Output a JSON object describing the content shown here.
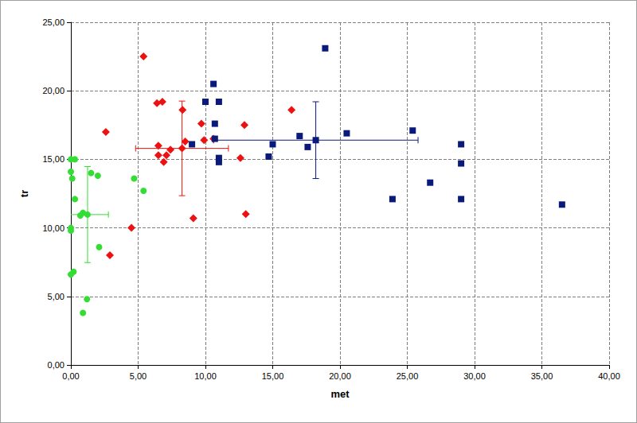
{
  "chart_data": {
    "type": "scatter",
    "x_label": "met",
    "y_label": "tr",
    "xlim": [
      0,
      40
    ],
    "ylim": [
      0,
      25
    ],
    "xticks": [
      {
        "value": 0,
        "label": "0,00"
      },
      {
        "value": 5,
        "label": "5,00"
      },
      {
        "value": 10,
        "label": "10,00"
      },
      {
        "value": 15,
        "label": "15,00"
      },
      {
        "value": 20,
        "label": "20,00"
      },
      {
        "value": 25,
        "label": "25,00"
      },
      {
        "value": 30,
        "label": "30,00"
      },
      {
        "value": 35,
        "label": "35,00"
      },
      {
        "value": 40,
        "label": "40,00"
      }
    ],
    "yticks": [
      {
        "value": 0,
        "label": "0,00"
      },
      {
        "value": 5,
        "label": "5,00"
      },
      {
        "value": 10,
        "label": "10,00"
      },
      {
        "value": 15,
        "label": "15,00"
      },
      {
        "value": 20,
        "label": "20,00"
      },
      {
        "value": 25,
        "label": "25,00"
      }
    ],
    "grid": true,
    "series": [
      {
        "color": "#33dd33",
        "marker": "circle",
        "x": [
          0.0,
          0.3,
          0.0,
          0.1,
          0.3,
          0.0,
          0.0,
          0.0,
          0.2,
          0.7,
          0.9,
          1.5,
          2.0,
          2.1,
          1.2,
          0.9,
          4.7,
          5.4
        ],
        "y": [
          15.0,
          15.0,
          14.1,
          13.6,
          12.1,
          10.0,
          9.8,
          6.6,
          6.8,
          10.9,
          11.1,
          14.0,
          13.8,
          8.6,
          4.8,
          3.8,
          13.6,
          12.7
        ],
        "mean": [
          1.24,
          10.97
        ],
        "x_error": 1.55,
        "y_error": 3.5
      },
      {
        "color": "#ee1111",
        "marker": "diamond",
        "x": [
          5.4,
          2.6,
          6.4,
          6.8,
          6.5,
          6.5,
          6.9,
          7.1,
          7.4,
          8.3,
          8.5,
          9.7,
          9.9,
          10.6,
          12.9,
          12.6,
          16.4,
          9.1,
          13.0,
          4.5,
          2.9
        ],
        "y": [
          22.5,
          17.0,
          19.1,
          19.2,
          16.0,
          15.3,
          14.8,
          15.3,
          15.7,
          18.6,
          16.3,
          17.6,
          16.4,
          16.5,
          17.5,
          15.1,
          18.6,
          10.7,
          11.0,
          10.0,
          8.0
        ],
        "mean": [
          8.26,
          15.8
        ],
        "x_error": 3.45,
        "y_error": 3.45
      },
      {
        "color": "#0a1a7a",
        "marker": "square",
        "x": [
          18.9,
          10.6,
          10.0,
          11.0,
          10.7,
          10.7,
          9.0,
          11.0,
          11.0,
          15.0,
          14.7,
          17.0,
          17.6,
          20.5,
          25.4,
          29.0,
          29.0,
          23.9,
          26.7,
          29.0,
          36.5
        ],
        "y": [
          23.1,
          20.5,
          19.2,
          19.2,
          17.6,
          16.5,
          16.1,
          15.1,
          14.8,
          16.1,
          15.2,
          16.7,
          15.9,
          16.9,
          17.1,
          16.1,
          14.7,
          12.1,
          13.3,
          12.1,
          11.7
        ],
        "mean": [
          18.2,
          16.4
        ],
        "x_error": 7.6,
        "y_error": 2.8
      }
    ]
  }
}
